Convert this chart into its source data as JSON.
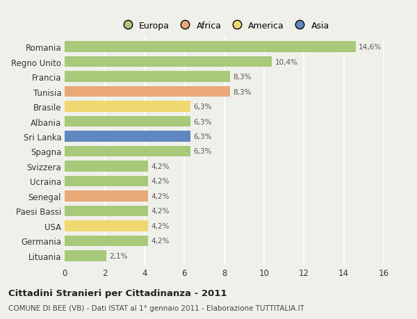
{
  "countries": [
    "Romania",
    "Regno Unito",
    "Francia",
    "Tunisia",
    "Brasile",
    "Albania",
    "Sri Lanka",
    "Spagna",
    "Svizzera",
    "Ucraina",
    "Senegal",
    "Paesi Bassi",
    "USA",
    "Germania",
    "Lituania"
  ],
  "values": [
    14.6,
    10.4,
    8.3,
    8.3,
    6.3,
    6.3,
    6.3,
    6.3,
    4.2,
    4.2,
    4.2,
    4.2,
    4.2,
    4.2,
    2.1
  ],
  "labels": [
    "14,6%",
    "10,4%",
    "8,3%",
    "8,3%",
    "6,3%",
    "6,3%",
    "6,3%",
    "6,3%",
    "4,2%",
    "4,2%",
    "4,2%",
    "4,2%",
    "4,2%",
    "4,2%",
    "2,1%"
  ],
  "colors": [
    "#a8c87a",
    "#a8c87a",
    "#a8c87a",
    "#e8a878",
    "#f0d870",
    "#a8c87a",
    "#6088c0",
    "#a8c87a",
    "#a8c87a",
    "#a8c87a",
    "#e8a878",
    "#a8c87a",
    "#f0d870",
    "#a8c87a",
    "#a8c87a"
  ],
  "legend_labels": [
    "Europa",
    "Africa",
    "America",
    "Asia"
  ],
  "legend_colors": [
    "#a8c87a",
    "#e8a878",
    "#f0d870",
    "#6088c0"
  ],
  "title": "Cittadini Stranieri per Cittadinanza - 2011",
  "subtitle": "COMUNE DI BEE (VB) - Dati ISTAT al 1° gennaio 2011 - Elaborazione TUTTITALIA.IT",
  "xlim": [
    0,
    16
  ],
  "xticks": [
    0,
    2,
    4,
    6,
    8,
    10,
    12,
    14,
    16
  ],
  "background_color": "#f0f0eb",
  "grid_color": "#ffffff",
  "bar_height": 0.72
}
